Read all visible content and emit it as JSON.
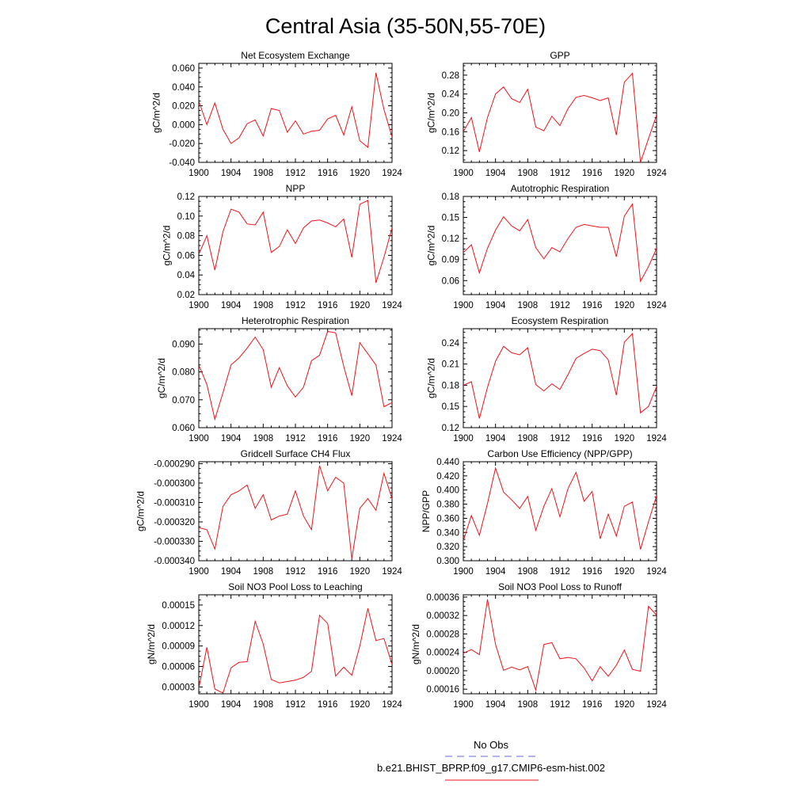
{
  "page": {
    "title": "Central Asia (35-50N,55-70E)"
  },
  "legend": {
    "entries": [
      {
        "label": "No Obs",
        "color": "#6a6adb",
        "dash": true
      },
      {
        "label": "b.e21.BHIST_BPRP.f09_g17.CMIP6-esm-hist.002",
        "color": "#e8161b",
        "dash": false
      }
    ]
  },
  "chart_data": [
    {
      "type": "line",
      "title": "Net Ecosystem Exchange",
      "ylabel": "gC/m^2/d",
      "x": [
        1900,
        1901,
        1902,
        1903,
        1904,
        1905,
        1906,
        1907,
        1908,
        1909,
        1910,
        1911,
        1912,
        1913,
        1914,
        1915,
        1916,
        1917,
        1918,
        1919,
        1920,
        1921,
        1922,
        1923,
        1924
      ],
      "xlim": [
        1900,
        1924
      ],
      "xticks": [
        "1900",
        "1904",
        "1908",
        "1912",
        "1916",
        "1920",
        "1924"
      ],
      "ylim": [
        -0.04,
        0.065
      ],
      "yticks": [
        "-0.040",
        "-0.020",
        "0.000",
        "0.020",
        "0.040",
        "0.060"
      ],
      "ytick_values": [
        -0.04,
        -0.02,
        0,
        0.02,
        0.04,
        0.06
      ],
      "series": [
        {
          "color": "#e8161b",
          "values": [
            0.025,
            0.0,
            0.023,
            -0.005,
            -0.02,
            -0.014,
            0.001,
            0.005,
            -0.012,
            0.017,
            0.015,
            -0.008,
            0.004,
            -0.01,
            -0.007,
            -0.006,
            0.006,
            0.01,
            -0.011,
            0.019,
            -0.017,
            -0.024,
            0.055,
            0.016,
            -0.013
          ]
        }
      ]
    },
    {
      "type": "line",
      "title": "GPP",
      "ylabel": "gC/m^2/d",
      "x": [
        1900,
        1901,
        1902,
        1903,
        1904,
        1905,
        1906,
        1907,
        1908,
        1909,
        1910,
        1911,
        1912,
        1913,
        1914,
        1915,
        1916,
        1917,
        1918,
        1919,
        1920,
        1921,
        1922,
        1923,
        1924
      ],
      "xlim": [
        1900,
        1924
      ],
      "xticks": [
        "1900",
        "1904",
        "1908",
        "1912",
        "1916",
        "1920",
        "1924"
      ],
      "ylim": [
        0.095,
        0.305
      ],
      "yticks": [
        "0.12",
        "0.16",
        "0.20",
        "0.24",
        "0.28"
      ],
      "ytick_values": [
        0.12,
        0.16,
        0.2,
        0.24,
        0.28
      ],
      "series": [
        {
          "color": "#e8161b",
          "values": [
            0.16,
            0.19,
            0.117,
            0.19,
            0.24,
            0.255,
            0.23,
            0.222,
            0.25,
            0.17,
            0.162,
            0.193,
            0.173,
            0.209,
            0.233,
            0.237,
            0.232,
            0.226,
            0.232,
            0.153,
            0.265,
            0.284,
            0.095,
            0.145,
            0.195
          ]
        }
      ]
    },
    {
      "type": "line",
      "title": "NPP",
      "ylabel": "gC/m^2/d",
      "x": [
        1900,
        1901,
        1902,
        1903,
        1904,
        1905,
        1906,
        1907,
        1908,
        1909,
        1910,
        1911,
        1912,
        1913,
        1914,
        1915,
        1916,
        1917,
        1918,
        1919,
        1920,
        1921,
        1922,
        1923,
        1924
      ],
      "xlim": [
        1900,
        1924
      ],
      "xticks": [
        "1900",
        "1904",
        "1908",
        "1912",
        "1916",
        "1920",
        "1924"
      ],
      "ylim": [
        0.02,
        0.12
      ],
      "yticks": [
        "0.02",
        "0.04",
        "0.06",
        "0.08",
        "0.10",
        "0.12"
      ],
      "ytick_values": [
        0.02,
        0.04,
        0.06,
        0.08,
        0.1,
        0.12
      ],
      "series": [
        {
          "color": "#e8161b",
          "values": [
            0.061,
            0.08,
            0.045,
            0.084,
            0.107,
            0.104,
            0.092,
            0.091,
            0.104,
            0.063,
            0.069,
            0.086,
            0.072,
            0.088,
            0.095,
            0.096,
            0.093,
            0.089,
            0.097,
            0.058,
            0.112,
            0.116,
            0.032,
            0.058,
            0.088
          ]
        }
      ]
    },
    {
      "type": "line",
      "title": "Autotrophic Respiration",
      "ylabel": "gC/m^2/d",
      "x": [
        1900,
        1901,
        1902,
        1903,
        1904,
        1905,
        1906,
        1907,
        1908,
        1909,
        1910,
        1911,
        1912,
        1913,
        1914,
        1915,
        1916,
        1917,
        1918,
        1919,
        1920,
        1921,
        1922,
        1923,
        1924
      ],
      "xlim": [
        1900,
        1924
      ],
      "xticks": [
        "1900",
        "1904",
        "1908",
        "1912",
        "1916",
        "1920",
        "1924"
      ],
      "ylim": [
        0.04,
        0.18
      ],
      "yticks": [
        "0.06",
        "0.09",
        "0.12",
        "0.15",
        "0.18"
      ],
      "ytick_values": [
        0.06,
        0.09,
        0.12,
        0.15,
        0.18
      ],
      "series": [
        {
          "color": "#e8161b",
          "values": [
            0.1,
            0.111,
            0.071,
            0.106,
            0.132,
            0.151,
            0.138,
            0.131,
            0.147,
            0.107,
            0.091,
            0.107,
            0.101,
            0.12,
            0.136,
            0.14,
            0.138,
            0.136,
            0.136,
            0.094,
            0.152,
            0.169,
            0.059,
            0.08,
            0.106
          ]
        }
      ]
    },
    {
      "type": "line",
      "title": "Heterotrophic Respiration",
      "ylabel": "gC/m^2/d",
      "x": [
        1900,
        1901,
        1902,
        1903,
        1904,
        1905,
        1906,
        1907,
        1908,
        1909,
        1910,
        1911,
        1912,
        1913,
        1914,
        1915,
        1916,
        1917,
        1918,
        1919,
        1920,
        1921,
        1922,
        1923,
        1924
      ],
      "xlim": [
        1900,
        1924
      ],
      "xticks": [
        "1900",
        "1904",
        "1908",
        "1912",
        "1916",
        "1920",
        "1924"
      ],
      "ylim": [
        0.06,
        0.0955
      ],
      "yticks": [
        "0.060",
        "0.070",
        "0.080",
        "0.090"
      ],
      "ytick_values": [
        0.06,
        0.07,
        0.08,
        0.09
      ],
      "series": [
        {
          "color": "#e8161b",
          "values": [
            0.0825,
            0.0755,
            0.063,
            0.0725,
            0.0825,
            0.085,
            0.0885,
            0.0925,
            0.088,
            0.0745,
            0.0815,
            0.075,
            0.071,
            0.0745,
            0.084,
            0.086,
            0.0945,
            0.094,
            0.082,
            0.0715,
            0.0905,
            0.0865,
            0.0825,
            0.0675,
            0.069
          ]
        }
      ]
    },
    {
      "type": "line",
      "title": "Ecosystem Respiration",
      "ylabel": "gC/m^2/d",
      "x": [
        1900,
        1901,
        1902,
        1903,
        1904,
        1905,
        1906,
        1907,
        1908,
        1909,
        1910,
        1911,
        1912,
        1913,
        1914,
        1915,
        1916,
        1917,
        1918,
        1919,
        1920,
        1921,
        1922,
        1923,
        1924
      ],
      "xlim": [
        1900,
        1924
      ],
      "xticks": [
        "1900",
        "1904",
        "1908",
        "1912",
        "1916",
        "1920",
        "1924"
      ],
      "ylim": [
        0.12,
        0.26
      ],
      "yticks": [
        "0.12",
        "0.15",
        "0.18",
        "0.21",
        "0.24"
      ],
      "ytick_values": [
        0.12,
        0.15,
        0.18,
        0.21,
        0.24
      ],
      "series": [
        {
          "color": "#e8161b",
          "values": [
            0.18,
            0.185,
            0.133,
            0.177,
            0.214,
            0.235,
            0.226,
            0.223,
            0.233,
            0.181,
            0.172,
            0.182,
            0.174,
            0.195,
            0.218,
            0.225,
            0.231,
            0.229,
            0.216,
            0.166,
            0.241,
            0.253,
            0.141,
            0.15,
            0.178
          ]
        }
      ]
    },
    {
      "type": "line",
      "title": "Gridcell Surface CH4 Flux",
      "ylabel": "gC/m^2/d",
      "x": [
        1900,
        1901,
        1902,
        1903,
        1904,
        1905,
        1906,
        1907,
        1908,
        1909,
        1910,
        1911,
        1912,
        1913,
        1914,
        1915,
        1916,
        1917,
        1918,
        1919,
        1920,
        1921,
        1922,
        1923,
        1924
      ],
      "xlim": [
        1900,
        1924
      ],
      "xticks": [
        "1900",
        "1904",
        "1908",
        "1912",
        "1916",
        "1920",
        "1924"
      ],
      "ylim": [
        -0.00034,
        -0.000289
      ],
      "yticks": [
        "-0.000340",
        "-0.000330",
        "-0.000320",
        "-0.000310",
        "-0.000300",
        "-0.000290"
      ],
      "ytick_values": [
        -0.00034,
        -0.00033,
        -0.00032,
        -0.00031,
        -0.0003,
        -0.00029
      ],
      "series": [
        {
          "color": "#e8161b",
          "values": [
            -0.000323,
            -0.000324,
            -0.000334,
            -0.000312,
            -0.000306,
            -0.000304,
            -0.000301,
            -0.000313,
            -0.000306,
            -0.000319,
            -0.000317,
            -0.000316,
            -0.000304,
            -0.000317,
            -0.000324,
            -0.000291,
            -0.000304,
            -0.000297,
            -0.0003,
            -0.000339,
            -0.000313,
            -0.000308,
            -0.000314,
            -0.000295,
            -0.000308
          ]
        }
      ]
    },
    {
      "type": "line",
      "title": "Carbon Use Efficiency (NPP/GPP)",
      "ylabel": "NPP/GPP",
      "x": [
        1900,
        1901,
        1902,
        1903,
        1904,
        1905,
        1906,
        1907,
        1908,
        1909,
        1910,
        1911,
        1912,
        1913,
        1914,
        1915,
        1916,
        1917,
        1918,
        1919,
        1920,
        1921,
        1922,
        1923,
        1924
      ],
      "xlim": [
        1900,
        1924
      ],
      "xticks": [
        "1900",
        "1904",
        "1908",
        "1912",
        "1916",
        "1920",
        "1924"
      ],
      "ylim": [
        0.3,
        0.44
      ],
      "yticks": [
        "0.300",
        "0.320",
        "0.340",
        "0.360",
        "0.380",
        "0.400",
        "0.420",
        "0.440"
      ],
      "ytick_values": [
        0.3,
        0.32,
        0.34,
        0.36,
        0.38,
        0.4,
        0.42,
        0.44
      ],
      "series": [
        {
          "color": "#e8161b",
          "values": [
            0.328,
            0.364,
            0.336,
            0.381,
            0.431,
            0.397,
            0.386,
            0.374,
            0.391,
            0.343,
            0.377,
            0.402,
            0.362,
            0.402,
            0.425,
            0.384,
            0.398,
            0.331,
            0.366,
            0.335,
            0.377,
            0.383,
            0.316,
            0.355,
            0.392
          ]
        }
      ]
    },
    {
      "type": "line",
      "title": "Soil NO3 Pool Loss to Leaching",
      "ylabel": "gN/m^2/d",
      "x": [
        1900,
        1901,
        1902,
        1903,
        1904,
        1905,
        1906,
        1907,
        1908,
        1909,
        1910,
        1911,
        1912,
        1913,
        1914,
        1915,
        1916,
        1917,
        1918,
        1919,
        1920,
        1921,
        1922,
        1923,
        1924
      ],
      "xlim": [
        1900,
        1924
      ],
      "xticks": [
        "1900",
        "1904",
        "1908",
        "1912",
        "1916",
        "1920",
        "1924"
      ],
      "ylim": [
        2e-05,
        0.000165
      ],
      "yticks": [
        "0.00003",
        "0.00006",
        "0.00009",
        "0.00012",
        "0.00015"
      ],
      "ytick_values": [
        3e-05,
        6e-05,
        9e-05,
        0.00012,
        0.00015
      ],
      "series": [
        {
          "color": "#e8161b",
          "values": [
            2.8e-05,
            8.8e-05,
            2.7e-05,
            2.1e-05,
            5.8e-05,
            6.6e-05,
            6.7e-05,
            0.000126,
            9.3e-05,
            4.1e-05,
            3.6e-05,
            3.8e-05,
            4e-05,
            4.4e-05,
            5.3e-05,
            0.000135,
            0.000123,
            4.6e-05,
            5.9e-05,
            4.7e-05,
            9e-05,
            0.000145,
            9.8e-05,
            0.000101,
            6.3e-05
          ]
        }
      ]
    },
    {
      "type": "line",
      "title": "Soil NO3 Pool Loss to Runoff",
      "ylabel": "gN/m^2/d",
      "x": [
        1900,
        1901,
        1902,
        1903,
        1904,
        1905,
        1906,
        1907,
        1908,
        1909,
        1910,
        1911,
        1912,
        1913,
        1914,
        1915,
        1916,
        1917,
        1918,
        1919,
        1920,
        1921,
        1922,
        1923,
        1924
      ],
      "xlim": [
        1900,
        1924
      ],
      "xticks": [
        "1900",
        "1904",
        "1908",
        "1912",
        "1916",
        "1920",
        "1924"
      ],
      "ylim": [
        0.00015,
        0.000365
      ],
      "yticks": [
        "0.00016",
        "0.00020",
        "0.00024",
        "0.00028",
        "0.00032",
        "0.00036"
      ],
      "ytick_values": [
        0.00016,
        0.0002,
        0.00024,
        0.00028,
        0.00032,
        0.00036
      ],
      "series": [
        {
          "color": "#e8161b",
          "values": [
            0.000238,
            0.000246,
            0.000235,
            0.000355,
            0.000257,
            0.000201,
            0.000208,
            0.000202,
            0.000209,
            0.000158,
            0.000257,
            0.000261,
            0.000226,
            0.000229,
            0.000226,
            0.000206,
            0.000178,
            0.000209,
            0.000188,
            0.000212,
            0.000245,
            0.000203,
            0.000199,
            0.00034,
            0.000321
          ]
        }
      ]
    }
  ]
}
